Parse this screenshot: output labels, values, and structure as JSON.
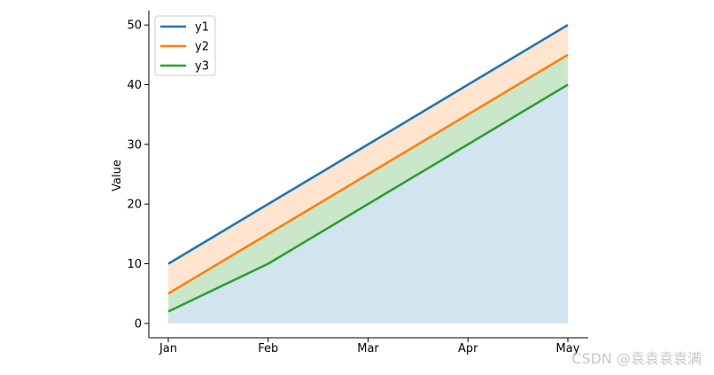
{
  "chart_data": {
    "type": "area",
    "categories": [
      "Jan",
      "Feb",
      "Mar",
      "Apr",
      "May"
    ],
    "series": [
      {
        "name": "y1",
        "values": [
          10,
          20,
          30,
          40,
          50
        ],
        "color": "#1f77b4"
      },
      {
        "name": "y2",
        "values": [
          5,
          15,
          25,
          35,
          45
        ],
        "color": "#ff7f0e"
      },
      {
        "name": "y3",
        "values": [
          2,
          10,
          20,
          30,
          40
        ],
        "color": "#2ca02c"
      }
    ],
    "fills": [
      {
        "between": [
          "y3",
          "zero"
        ],
        "color": "#1f77b4",
        "opacity": 0.2
      },
      {
        "between": [
          "y2",
          "y3"
        ],
        "color": "#2ca02c",
        "opacity": 0.25
      },
      {
        "between": [
          "y1",
          "y2"
        ],
        "color": "#ff7f0e",
        "opacity": 0.2
      }
    ],
    "ylabel": "Value",
    "xlabel": "",
    "yticks": [
      0,
      10,
      20,
      30,
      40,
      50
    ],
    "ylim": [
      -2.4,
      52.4
    ],
    "legend_position": "upper-left",
    "grid": false,
    "spines": [
      "left",
      "bottom"
    ]
  },
  "watermark": "CSDN @袁袁袁袁满"
}
